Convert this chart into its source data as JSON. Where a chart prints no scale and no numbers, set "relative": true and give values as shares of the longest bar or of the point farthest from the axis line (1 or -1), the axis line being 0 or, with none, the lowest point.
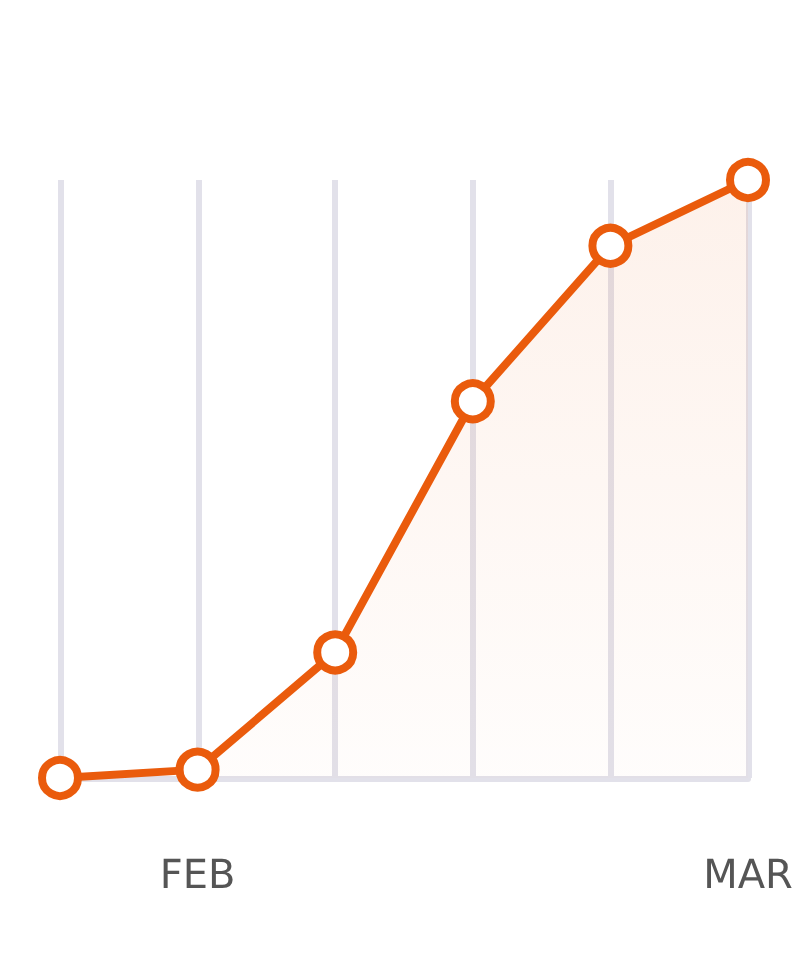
{
  "chart_data": {
    "type": "area",
    "relative": true,
    "categories": [
      null,
      "FEB",
      null,
      null,
      null,
      "MAR"
    ],
    "series": [
      {
        "color": "#ea5b0c",
        "values": [
          0,
          0.014,
          0.21,
          0.63,
          0.89,
          1
        ]
      }
    ],
    "grid": "x",
    "marker": "circle",
    "line_style": "solid"
  }
}
